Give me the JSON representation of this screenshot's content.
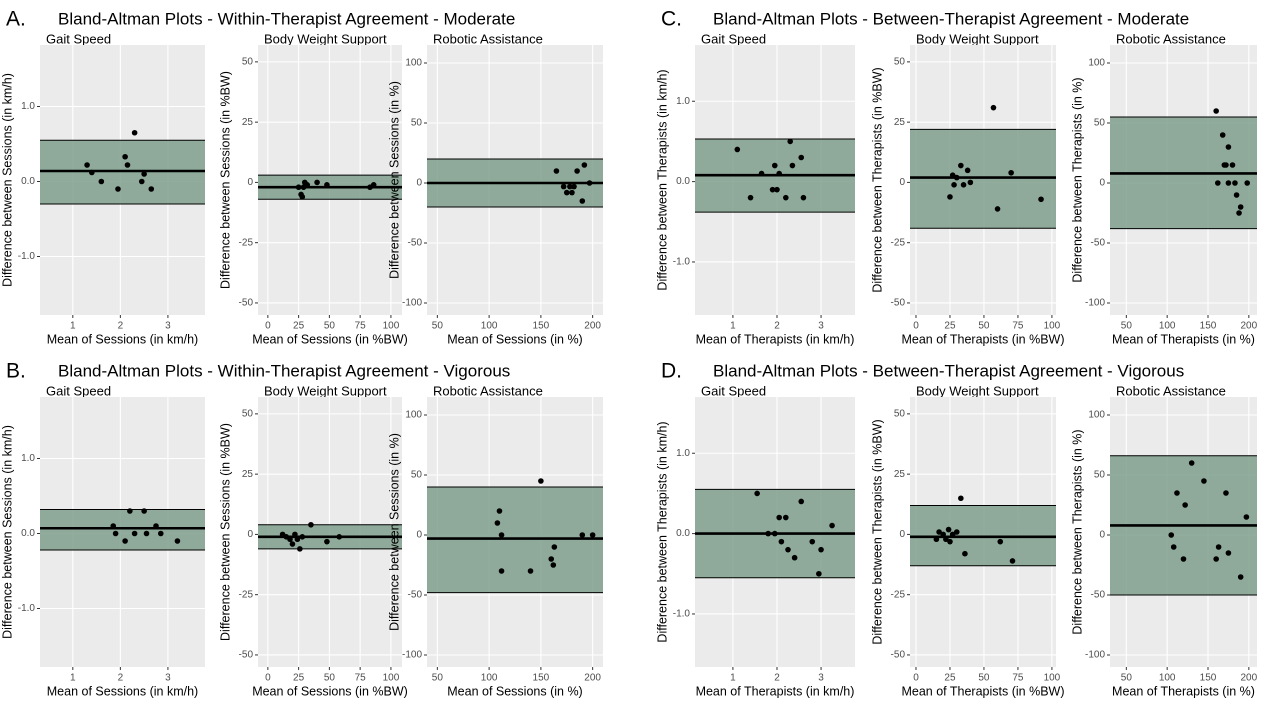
{
  "chart_data": [
    {
      "type": "bland-altman",
      "label": "A.",
      "title": "Bland-Altman Plots - Within-Therapist Agreement - Moderate",
      "band_color": "#7f9f8c",
      "point_color": "#000000",
      "subplots": [
        {
          "title": "Gait Speed",
          "x_label": "Mean of Sessions (in km/h)",
          "y_label": "Difference between Sessions (in km/h)",
          "xlim": [
            0.31,
            3.78
          ],
          "ylim": [
            -1.78,
            1.82
          ],
          "xticks": [
            1,
            2,
            3
          ],
          "yticks": [
            {
              "value": 1,
              "label": "1.0"
            },
            {
              "value": 0,
              "label": "0.0"
            },
            {
              "value": -1,
              "label": "-1.0"
            }
          ],
          "mean": 0.14,
          "upper": 0.55,
          "lower": -0.3,
          "x": [
            1.3,
            1.4,
            1.6,
            1.95,
            2.1,
            2.15,
            2.3,
            2.45,
            2.5,
            2.65
          ],
          "y": [
            0.22,
            0.12,
            0.0,
            -0.1,
            0.33,
            0.22,
            0.65,
            0.0,
            0.1,
            -0.1
          ]
        },
        {
          "title": "Body Weight Support",
          "x_label": "Mean of Sessions (in %BW)",
          "y_label": "Difference between Sessions (in %BW)",
          "xlim": [
            -8,
            109
          ],
          "ylim": [
            -55,
            57
          ],
          "xticks": [
            0,
            25,
            50,
            75,
            100
          ],
          "yticks": [
            50,
            25,
            0,
            -25,
            -50
          ],
          "mean": -2,
          "upper": 3,
          "lower": -7,
          "x": [
            25,
            27,
            28,
            29,
            30,
            32,
            40,
            48,
            83,
            86
          ],
          "y": [
            -2,
            -5,
            -6,
            -2,
            0,
            -1,
            0,
            -1,
            -2,
            -1
          ]
        },
        {
          "title": "Robotic Assistance",
          "x_label": "Mean of Sessions (in %)",
          "y_label": "Difference between Sessions (in %)",
          "xlim": [
            40,
            210
          ],
          "ylim": [
            -110,
            115
          ],
          "xticks": [
            50,
            100,
            150,
            200
          ],
          "yticks": [
            100,
            50,
            0,
            -50,
            -100
          ],
          "mean": 0,
          "upper": 20,
          "lower": -20,
          "x": [
            165,
            172,
            175,
            178,
            180,
            182,
            185,
            190,
            192,
            197
          ],
          "y": [
            10,
            -3,
            -8,
            -3,
            -8,
            -3,
            10,
            -15,
            15,
            0
          ]
        }
      ]
    },
    {
      "type": "bland-altman",
      "label": "B.",
      "title": "Bland-Altman Plots - Within-Therapist Agreement - Vigorous",
      "band_color": "#7f9f8c",
      "point_color": "#000000",
      "subplots": [
        {
          "title": "Gait Speed",
          "x_label": "Mean of Sessions (in km/h)",
          "y_label": "Difference between Sessions (in km/h)",
          "xlim": [
            0.31,
            3.78
          ],
          "ylim": [
            -1.78,
            1.82
          ],
          "xticks": [
            1,
            2,
            3
          ],
          "yticks": [
            {
              "value": 1,
              "label": "1.0"
            },
            {
              "value": 0,
              "label": "0.0"
            },
            {
              "value": -1,
              "label": "-1.0"
            }
          ],
          "mean": 0.07,
          "upper": 0.32,
          "lower": -0.22,
          "x": [
            1.85,
            1.9,
            2.1,
            2.2,
            2.3,
            2.5,
            2.55,
            2.75,
            2.85,
            3.2
          ],
          "y": [
            0.1,
            0.0,
            -0.1,
            0.3,
            0.0,
            0.3,
            0.0,
            0.1,
            0.0,
            -0.1
          ]
        },
        {
          "title": "Body Weight Support",
          "x_label": "Mean of Sessions (in %BW)",
          "y_label": "Difference between Sessions (in %BW)",
          "xlim": [
            -8,
            109
          ],
          "ylim": [
            -55,
            57
          ],
          "xticks": [
            0,
            25,
            50,
            75,
            100
          ],
          "yticks": [
            50,
            25,
            0,
            -25,
            -50
          ],
          "mean": -1,
          "upper": 4,
          "lower": -6,
          "x": [
            12,
            15,
            18,
            20,
            22,
            24,
            26,
            28,
            35,
            48,
            58
          ],
          "y": [
            0,
            -1,
            -2,
            -4,
            0,
            -2,
            -6,
            -1,
            4,
            -3,
            -1
          ]
        },
        {
          "title": "Robotic Assistance",
          "x_label": "Mean of Sessions (in %)",
          "y_label": "Difference between Sessions (in %)",
          "xlim": [
            40,
            210
          ],
          "ylim": [
            -110,
            115
          ],
          "xticks": [
            50,
            100,
            150,
            200
          ],
          "yticks": [
            100,
            50,
            0,
            -50,
            -100
          ],
          "mean": -3,
          "upper": 40,
          "lower": -48,
          "x": [
            108,
            110,
            112,
            112,
            140,
            150,
            160,
            162,
            163,
            190,
            200
          ],
          "y": [
            10,
            20,
            0,
            -30,
            -30,
            45,
            -20,
            -25,
            -10,
            0,
            0
          ]
        }
      ]
    },
    {
      "type": "bland-altman",
      "label": "C.",
      "title": "Bland-Altman Plots - Between-Therapist Agreement - Moderate",
      "band_color": "#7f9f8c",
      "point_color": "#000000",
      "subplots": [
        {
          "title": "Gait Speed",
          "x_label": "Mean of Therapists (in km/h)",
          "y_label": "Difference between Therapists (in km/h)",
          "xlim": [
            0.14,
            3.77
          ],
          "ylim": [
            -1.66,
            1.7
          ],
          "xticks": [
            1,
            2,
            3
          ],
          "yticks": [
            {
              "value": 1,
              "label": "1.0"
            },
            {
              "value": 0,
              "label": "0.0"
            },
            {
              "value": -1,
              "label": "-1.0"
            }
          ],
          "mean": 0.08,
          "upper": 0.53,
          "lower": -0.38,
          "x": [
            1.1,
            1.4,
            1.65,
            1.9,
            1.95,
            2.0,
            2.05,
            2.2,
            2.3,
            2.35,
            2.55,
            2.6
          ],
          "y": [
            0.4,
            -0.2,
            0.1,
            -0.1,
            0.2,
            -0.1,
            0.1,
            -0.2,
            0.5,
            0.2,
            0.3,
            -0.2
          ]
        },
        {
          "title": "Body Weight Support",
          "x_label": "Mean of Therapists (in %BW)",
          "y_label": "Difference between Therapists (in %BW)",
          "xlim": [
            -4.4,
            103
          ],
          "ylim": [
            -55,
            57
          ],
          "xticks": [
            0,
            25,
            50,
            75,
            100
          ],
          "yticks": [
            50,
            25,
            0,
            -25,
            -50
          ],
          "mean": 2,
          "upper": 22,
          "lower": -19,
          "x": [
            25,
            27,
            28,
            30,
            33,
            35,
            38,
            40,
            57,
            60,
            70,
            92
          ],
          "y": [
            -6,
            3,
            -1,
            2,
            7,
            -1,
            5,
            0,
            31,
            -11,
            4,
            -7
          ]
        },
        {
          "title": "Robotic Assistance",
          "x_label": "Mean of Therapists (in %)",
          "y_label": "Difference between Therapists (in %)",
          "xlim": [
            30,
            210
          ],
          "ylim": [
            -110,
            115
          ],
          "xticks": [
            50,
            100,
            150,
            200
          ],
          "yticks": [
            100,
            50,
            0,
            -50,
            -100
          ],
          "mean": 8,
          "upper": 55,
          "lower": -38,
          "x": [
            160,
            162,
            168,
            170,
            172,
            175,
            175,
            180,
            183,
            185,
            188,
            190,
            198
          ],
          "y": [
            60,
            0,
            40,
            15,
            15,
            0,
            30,
            15,
            0,
            -10,
            -25,
            -20,
            0
          ]
        }
      ]
    },
    {
      "type": "bland-altman",
      "label": "D.",
      "title": "Bland-Altman Plots - Between-Therapist Agreement - Vigorous",
      "band_color": "#7f9f8c",
      "point_color": "#000000",
      "subplots": [
        {
          "title": "Gait Speed",
          "x_label": "Mean of Therapists (in km/h)",
          "y_label": "Difference between Therapists (in km/h)",
          "xlim": [
            0.14,
            3.77
          ],
          "ylim": [
            -1.66,
            1.7
          ],
          "xticks": [
            1,
            2,
            3
          ],
          "yticks": [
            {
              "value": 1,
              "label": "1.0"
            },
            {
              "value": 0,
              "label": "0.0"
            },
            {
              "value": -1,
              "label": "-1.0"
            }
          ],
          "mean": 0.0,
          "upper": 0.55,
          "lower": -0.55,
          "x": [
            1.55,
            1.8,
            1.95,
            2.05,
            2.1,
            2.2,
            2.25,
            2.4,
            2.55,
            2.8,
            2.95,
            3.0,
            3.25
          ],
          "y": [
            0.5,
            0.0,
            0.0,
            0.2,
            -0.1,
            0.2,
            -0.2,
            -0.3,
            0.4,
            -0.1,
            -0.5,
            -0.2,
            0.1
          ]
        },
        {
          "title": "Body Weight Support",
          "x_label": "Mean of Therapists (in %BW)",
          "y_label": "Difference between Therapists (in %BW)",
          "xlim": [
            -4.4,
            103
          ],
          "ylim": [
            -55,
            57
          ],
          "xticks": [
            0,
            25,
            50,
            75,
            100
          ],
          "yticks": [
            50,
            25,
            0,
            -25,
            -50
          ],
          "mean": -1,
          "upper": 12,
          "lower": -13,
          "x": [
            15,
            17,
            20,
            22,
            24,
            25,
            27,
            30,
            33,
            36,
            62,
            71
          ],
          "y": [
            -2,
            1,
            0,
            -2,
            2,
            -3,
            0,
            1,
            15,
            -8,
            -3,
            -11
          ]
        },
        {
          "title": "Robotic Assistance",
          "x_label": "Mean of Therapists (in %)",
          "y_label": "Difference between Therapists (in %)",
          "xlim": [
            30,
            210
          ],
          "ylim": [
            -110,
            115
          ],
          "xticks": [
            50,
            100,
            150,
            200
          ],
          "yticks": [
            100,
            50,
            0,
            -50,
            -100
          ],
          "mean": 8,
          "upper": 66,
          "lower": -50,
          "x": [
            105,
            108,
            112,
            120,
            122,
            130,
            145,
            160,
            163,
            172,
            175,
            190,
            197
          ],
          "y": [
            0,
            -10,
            35,
            -20,
            25,
            60,
            45,
            -20,
            -10,
            35,
            -15,
            -35,
            15
          ]
        }
      ]
    }
  ]
}
